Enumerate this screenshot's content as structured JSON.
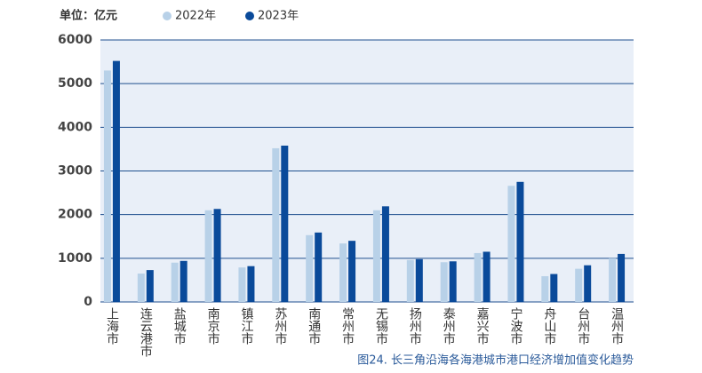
{
  "chart_data": {
    "type": "bar",
    "unit_label": "单位：亿元",
    "caption": "图24. 长三角沿海各海港城市港口经济增加值变化趋势",
    "categories": [
      "上海市",
      "连云港市",
      "盐城市",
      "南京市",
      "镇江市",
      "苏州市",
      "南通市",
      "常州市",
      "无锡市",
      "扬州市",
      "泰州市",
      "嘉兴市",
      "宁波市",
      "舟山市",
      "台州市",
      "温州市"
    ],
    "series": [
      {
        "name": "2022年",
        "color": "#b8d1e8",
        "values": [
          5300,
          650,
          900,
          2100,
          790,
          3520,
          1530,
          1340,
          2100,
          960,
          910,
          1120,
          2660,
          590,
          760,
          1000
        ]
      },
      {
        "name": "2023年",
        "color": "#0a4a9a",
        "values": [
          5520,
          730,
          940,
          2130,
          820,
          3580,
          1590,
          1400,
          2190,
          980,
          930,
          1150,
          2750,
          640,
          840,
          1100
        ]
      }
    ],
    "ylim": [
      0,
      6000
    ],
    "yticks": [
      0,
      1000,
      2000,
      3000,
      4000,
      5000,
      6000
    ],
    "grid": true
  }
}
